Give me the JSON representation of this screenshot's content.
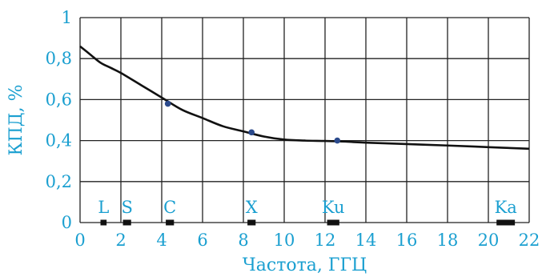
{
  "chart_data": {
    "type": "line",
    "title": "",
    "xlabel": "Частота, ГГЦ",
    "ylabel": "КПД, %",
    "xlim": [
      0,
      22
    ],
    "ylim": [
      0,
      1
    ],
    "grid": true,
    "x_ticks": [
      0,
      2,
      4,
      6,
      8,
      10,
      12,
      14,
      16,
      18,
      20,
      22
    ],
    "x_tick_labels": [
      "0",
      "2",
      "4",
      "6",
      "8",
      "10",
      "12",
      "14",
      "16",
      "18",
      "20",
      "22"
    ],
    "y_ticks": [
      0,
      0.2,
      0.4,
      0.6,
      0.8,
      1
    ],
    "y_tick_labels": [
      "0",
      "0,2",
      "0,4",
      "0,6",
      "0,8",
      "1"
    ],
    "series": [
      {
        "x": [
          0,
          0.5,
          1,
          1.5,
          2,
          3,
          4,
          5,
          6,
          7,
          8,
          9,
          10,
          11,
          12,
          13,
          14,
          16,
          18,
          20,
          22
        ],
        "values": [
          0.86,
          0.82,
          0.78,
          0.755,
          0.73,
          0.67,
          0.61,
          0.55,
          0.51,
          0.47,
          0.445,
          0.42,
          0.405,
          0.4,
          0.398,
          0.395,
          0.39,
          0.383,
          0.376,
          0.368,
          0.36
        ]
      }
    ],
    "markers": [
      {
        "x": 4.3,
        "y": 0.58
      },
      {
        "x": 8.4,
        "y": 0.44
      },
      {
        "x": 12.6,
        "y": 0.4
      }
    ],
    "bands": [
      {
        "label": "L",
        "from": 1,
        "to": 1.3
      },
      {
        "label": "S",
        "from": 2.1,
        "to": 2.5
      },
      {
        "label": "C",
        "from": 4.2,
        "to": 4.6
      },
      {
        "label": "X",
        "from": 8.2,
        "to": 8.6
      },
      {
        "label": "Ku",
        "from": 12.1,
        "to": 12.7
      },
      {
        "label": "Ka",
        "from": 20.4,
        "to": 21.3
      }
    ],
    "colors": {
      "text": "#1a9fd0",
      "line": "#111111",
      "marker": "#2b4a8c",
      "grid": "#222222"
    }
  }
}
